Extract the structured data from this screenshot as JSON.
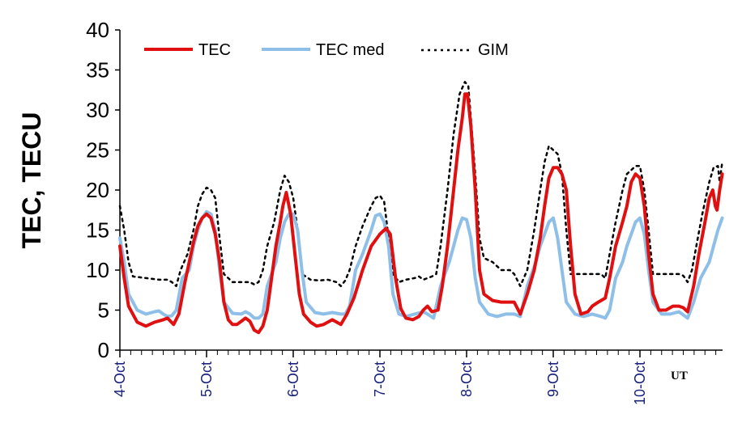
{
  "chart_data": {
    "type": "line",
    "ylabel": "TEC, TECU",
    "x_unit_label": "UT",
    "ylim": [
      0,
      40
    ],
    "y_ticks": [
      "0",
      "5",
      "10",
      "15",
      "20",
      "25",
      "30",
      "35",
      "40"
    ],
    "x_ticks": [
      "4-Oct",
      "5-Oct",
      "6-Oct",
      "7-Oct",
      "8-Oct",
      "9-Oct",
      "10-Oct"
    ],
    "x_range_days": [
      0,
      6.95
    ],
    "grid": false,
    "legend_position": "top-left",
    "series": [
      {
        "name": "TEC",
        "color": "#e01010",
        "points": [
          [
            0.0,
            13
          ],
          [
            0.05,
            9
          ],
          [
            0.1,
            5.5
          ],
          [
            0.2,
            3.5
          ],
          [
            0.3,
            3
          ],
          [
            0.4,
            3.5
          ],
          [
            0.5,
            3.8
          ],
          [
            0.55,
            4
          ],
          [
            0.62,
            3.2
          ],
          [
            0.68,
            4.5
          ],
          [
            0.75,
            8.5
          ],
          [
            0.8,
            11
          ],
          [
            0.85,
            13.5
          ],
          [
            0.9,
            15.5
          ],
          [
            0.95,
            16.5
          ],
          [
            1.0,
            17
          ],
          [
            1.05,
            16.5
          ],
          [
            1.1,
            14.5
          ],
          [
            1.15,
            11
          ],
          [
            1.2,
            6
          ],
          [
            1.25,
            3.8
          ],
          [
            1.3,
            3.2
          ],
          [
            1.35,
            3.2
          ],
          [
            1.4,
            3.6
          ],
          [
            1.45,
            4
          ],
          [
            1.5,
            3.6
          ],
          [
            1.55,
            2.5
          ],
          [
            1.6,
            2.2
          ],
          [
            1.65,
            3
          ],
          [
            1.7,
            5
          ],
          [
            1.75,
            9
          ],
          [
            1.8,
            13
          ],
          [
            1.85,
            16
          ],
          [
            1.88,
            18
          ],
          [
            1.92,
            19.7
          ],
          [
            1.97,
            17
          ],
          [
            2.02,
            12
          ],
          [
            2.07,
            7
          ],
          [
            2.12,
            4.5
          ],
          [
            2.2,
            3.5
          ],
          [
            2.27,
            3
          ],
          [
            2.35,
            3.2
          ],
          [
            2.45,
            3.8
          ],
          [
            2.55,
            3.2
          ],
          [
            2.62,
            4.5
          ],
          [
            2.7,
            6.5
          ],
          [
            2.8,
            10
          ],
          [
            2.9,
            13
          ],
          [
            3.0,
            14.5
          ],
          [
            3.07,
            15.2
          ],
          [
            3.12,
            14.5
          ],
          [
            3.18,
            9
          ],
          [
            3.24,
            5.2
          ],
          [
            3.3,
            4
          ],
          [
            3.38,
            3.8
          ],
          [
            3.45,
            4.2
          ],
          [
            3.5,
            5
          ],
          [
            3.55,
            5.5
          ],
          [
            3.6,
            4.8
          ],
          [
            3.67,
            5
          ],
          [
            3.72,
            8
          ],
          [
            3.78,
            13
          ],
          [
            3.85,
            20
          ],
          [
            3.9,
            25
          ],
          [
            3.95,
            29
          ],
          [
            3.98,
            32
          ],
          [
            4.01,
            32
          ],
          [
            4.05,
            28
          ],
          [
            4.1,
            20
          ],
          [
            4.15,
            10
          ],
          [
            4.2,
            7
          ],
          [
            4.3,
            6.2
          ],
          [
            4.4,
            6
          ],
          [
            4.5,
            6
          ],
          [
            4.55,
            6
          ],
          [
            4.62,
            4.5
          ],
          [
            4.7,
            7
          ],
          [
            4.78,
            10
          ],
          [
            4.85,
            14
          ],
          [
            4.9,
            18
          ],
          [
            4.95,
            21.5
          ],
          [
            5.0,
            22.8
          ],
          [
            5.05,
            22.8
          ],
          [
            5.1,
            22
          ],
          [
            5.15,
            20
          ],
          [
            5.2,
            13
          ],
          [
            5.25,
            7
          ],
          [
            5.32,
            4.5
          ],
          [
            5.4,
            4.8
          ],
          [
            5.45,
            5.5
          ],
          [
            5.52,
            6
          ],
          [
            5.6,
            6.5
          ],
          [
            5.65,
            9
          ],
          [
            5.72,
            13
          ],
          [
            5.8,
            16
          ],
          [
            5.85,
            18
          ],
          [
            5.9,
            21
          ],
          [
            5.95,
            22
          ],
          [
            6.0,
            21.5
          ],
          [
            6.05,
            18
          ],
          [
            6.1,
            12
          ],
          [
            6.15,
            7
          ],
          [
            6.22,
            5
          ],
          [
            6.3,
            5
          ],
          [
            6.38,
            5.5
          ],
          [
            6.45,
            5.5
          ],
          [
            6.5,
            5.3
          ],
          [
            6.55,
            4.8
          ],
          [
            6.62,
            8
          ],
          [
            6.68,
            12
          ],
          [
            6.75,
            16
          ],
          [
            6.8,
            19
          ],
          [
            6.84,
            20
          ],
          [
            6.87,
            18
          ],
          [
            6.89,
            17.5
          ],
          [
            6.92,
            20
          ],
          [
            6.95,
            22
          ]
        ]
      },
      {
        "name": "TEC med",
        "color": "#8ebfe8",
        "points": [
          [
            0.0,
            14
          ],
          [
            0.05,
            11
          ],
          [
            0.1,
            7
          ],
          [
            0.2,
            5
          ],
          [
            0.3,
            4.5
          ],
          [
            0.4,
            4.8
          ],
          [
            0.45,
            4.9
          ],
          [
            0.5,
            4.5
          ],
          [
            0.55,
            4.2
          ],
          [
            0.6,
            4.3
          ],
          [
            0.65,
            5
          ],
          [
            0.72,
            9
          ],
          [
            0.8,
            10
          ],
          [
            0.85,
            13
          ],
          [
            0.9,
            15
          ],
          [
            0.95,
            16.5
          ],
          [
            1.0,
            17.3
          ],
          [
            1.05,
            17
          ],
          [
            1.1,
            15
          ],
          [
            1.15,
            10
          ],
          [
            1.2,
            6
          ],
          [
            1.3,
            4.6
          ],
          [
            1.4,
            4.5
          ],
          [
            1.45,
            4.8
          ],
          [
            1.5,
            4.5
          ],
          [
            1.55,
            4
          ],
          [
            1.6,
            4
          ],
          [
            1.65,
            4.5
          ],
          [
            1.7,
            8
          ],
          [
            1.8,
            11
          ],
          [
            1.85,
            14
          ],
          [
            1.9,
            16
          ],
          [
            1.95,
            17
          ],
          [
            2.0,
            17
          ],
          [
            2.05,
            15
          ],
          [
            2.1,
            10
          ],
          [
            2.15,
            6
          ],
          [
            2.25,
            4.7
          ],
          [
            2.35,
            4.5
          ],
          [
            2.45,
            4.7
          ],
          [
            2.55,
            4.5
          ],
          [
            2.6,
            4.5
          ],
          [
            2.65,
            5.5
          ],
          [
            2.72,
            10
          ],
          [
            2.8,
            12
          ],
          [
            2.9,
            15
          ],
          [
            2.95,
            16.8
          ],
          [
            3.0,
            17
          ],
          [
            3.05,
            16
          ],
          [
            3.1,
            13
          ],
          [
            3.15,
            7
          ],
          [
            3.22,
            4.5
          ],
          [
            3.3,
            4.2
          ],
          [
            3.4,
            4.5
          ],
          [
            3.5,
            4.8
          ],
          [
            3.55,
            4.5
          ],
          [
            3.62,
            4
          ],
          [
            3.7,
            8
          ],
          [
            3.8,
            11
          ],
          [
            3.85,
            13
          ],
          [
            3.9,
            15
          ],
          [
            3.95,
            16.5
          ],
          [
            4.0,
            16.3
          ],
          [
            4.05,
            14
          ],
          [
            4.1,
            9
          ],
          [
            4.15,
            6
          ],
          [
            4.25,
            4.5
          ],
          [
            4.35,
            4.2
          ],
          [
            4.45,
            4.5
          ],
          [
            4.55,
            4.5
          ],
          [
            4.62,
            4.2
          ],
          [
            4.7,
            8
          ],
          [
            4.8,
            11
          ],
          [
            4.85,
            13
          ],
          [
            4.9,
            14.5
          ],
          [
            4.95,
            16
          ],
          [
            5.0,
            16.5
          ],
          [
            5.05,
            14
          ],
          [
            5.1,
            10
          ],
          [
            5.15,
            6
          ],
          [
            5.25,
            4.5
          ],
          [
            5.35,
            4.2
          ],
          [
            5.45,
            4.5
          ],
          [
            5.55,
            4.2
          ],
          [
            5.6,
            4
          ],
          [
            5.65,
            5
          ],
          [
            5.72,
            9
          ],
          [
            5.8,
            11
          ],
          [
            5.85,
            13
          ],
          [
            5.9,
            14.5
          ],
          [
            5.95,
            16
          ],
          [
            6.0,
            16.5
          ],
          [
            6.05,
            14.5
          ],
          [
            6.1,
            10
          ],
          [
            6.15,
            6
          ],
          [
            6.25,
            4.5
          ],
          [
            6.35,
            4.5
          ],
          [
            6.45,
            4.8
          ],
          [
            6.55,
            4
          ],
          [
            6.62,
            6
          ],
          [
            6.7,
            9
          ],
          [
            6.8,
            11
          ],
          [
            6.85,
            13
          ],
          [
            6.9,
            15
          ],
          [
            6.95,
            16.5
          ]
        ]
      },
      {
        "name": "GIM",
        "color": "#000000",
        "points": [
          [
            0.0,
            18
          ],
          [
            0.05,
            15
          ],
          [
            0.1,
            11
          ],
          [
            0.15,
            9.2
          ],
          [
            0.3,
            9
          ],
          [
            0.45,
            8.8
          ],
          [
            0.55,
            8.8
          ],
          [
            0.6,
            8.5
          ],
          [
            0.65,
            8
          ],
          [
            0.7,
            10
          ],
          [
            0.78,
            12
          ],
          [
            0.85,
            15
          ],
          [
            0.9,
            18
          ],
          [
            0.95,
            19.5
          ],
          [
            1.0,
            20.3
          ],
          [
            1.05,
            20
          ],
          [
            1.1,
            19
          ],
          [
            1.15,
            14
          ],
          [
            1.2,
            9.5
          ],
          [
            1.3,
            8.5
          ],
          [
            1.4,
            8.5
          ],
          [
            1.5,
            8.5
          ],
          [
            1.55,
            8.2
          ],
          [
            1.6,
            8.5
          ],
          [
            1.65,
            10
          ],
          [
            1.7,
            13
          ],
          [
            1.78,
            16
          ],
          [
            1.85,
            20
          ],
          [
            1.9,
            21.8
          ],
          [
            1.95,
            21
          ],
          [
            2.0,
            19
          ],
          [
            2.05,
            15
          ],
          [
            2.1,
            9.5
          ],
          [
            2.2,
            8.8
          ],
          [
            2.3,
            8.7
          ],
          [
            2.4,
            8.8
          ],
          [
            2.5,
            8.5
          ],
          [
            2.55,
            8
          ],
          [
            2.6,
            8.7
          ],
          [
            2.65,
            10
          ],
          [
            2.72,
            13
          ],
          [
            2.8,
            15.5
          ],
          [
            2.9,
            18
          ],
          [
            2.95,
            19
          ],
          [
            3.0,
            19.3
          ],
          [
            3.05,
            18.5
          ],
          [
            3.1,
            14
          ],
          [
            3.15,
            9.5
          ],
          [
            3.22,
            8.5
          ],
          [
            3.3,
            8.8
          ],
          [
            3.4,
            9
          ],
          [
            3.45,
            9.2
          ],
          [
            3.5,
            8.8
          ],
          [
            3.55,
            9
          ],
          [
            3.6,
            9.2
          ],
          [
            3.65,
            9.5
          ],
          [
            3.7,
            13
          ],
          [
            3.78,
            20
          ],
          [
            3.85,
            27
          ],
          [
            3.92,
            32
          ],
          [
            3.98,
            33.5
          ],
          [
            4.02,
            33
          ],
          [
            4.05,
            29
          ],
          [
            4.1,
            22
          ],
          [
            4.15,
            14
          ],
          [
            4.2,
            11.5
          ],
          [
            4.3,
            11
          ],
          [
            4.4,
            10
          ],
          [
            4.5,
            10
          ],
          [
            4.55,
            9.5
          ],
          [
            4.62,
            8
          ],
          [
            4.7,
            10
          ],
          [
            4.78,
            15
          ],
          [
            4.85,
            20
          ],
          [
            4.9,
            23.5
          ],
          [
            4.95,
            25.5
          ],
          [
            5.0,
            25
          ],
          [
            5.05,
            24.5
          ],
          [
            5.1,
            22
          ],
          [
            5.15,
            15
          ],
          [
            5.2,
            9.5
          ],
          [
            5.3,
            9.5
          ],
          [
            5.4,
            9.5
          ],
          [
            5.5,
            9.5
          ],
          [
            5.55,
            9.5
          ],
          [
            5.6,
            9
          ],
          [
            5.65,
            12
          ],
          [
            5.72,
            16
          ],
          [
            5.8,
            20
          ],
          [
            5.85,
            22
          ],
          [
            5.9,
            22.5
          ],
          [
            5.95,
            23
          ],
          [
            6.0,
            23
          ],
          [
            6.05,
            20
          ],
          [
            6.1,
            15
          ],
          [
            6.15,
            9.5
          ],
          [
            6.25,
            9.5
          ],
          [
            6.35,
            9.5
          ],
          [
            6.45,
            9.5
          ],
          [
            6.5,
            9.3
          ],
          [
            6.55,
            8.5
          ],
          [
            6.6,
            10
          ],
          [
            6.65,
            13
          ],
          [
            6.72,
            17
          ],
          [
            6.8,
            21
          ],
          [
            6.85,
            22.8
          ],
          [
            6.9,
            23
          ],
          [
            6.92,
            21
          ],
          [
            6.95,
            23.5
          ]
        ]
      }
    ]
  }
}
